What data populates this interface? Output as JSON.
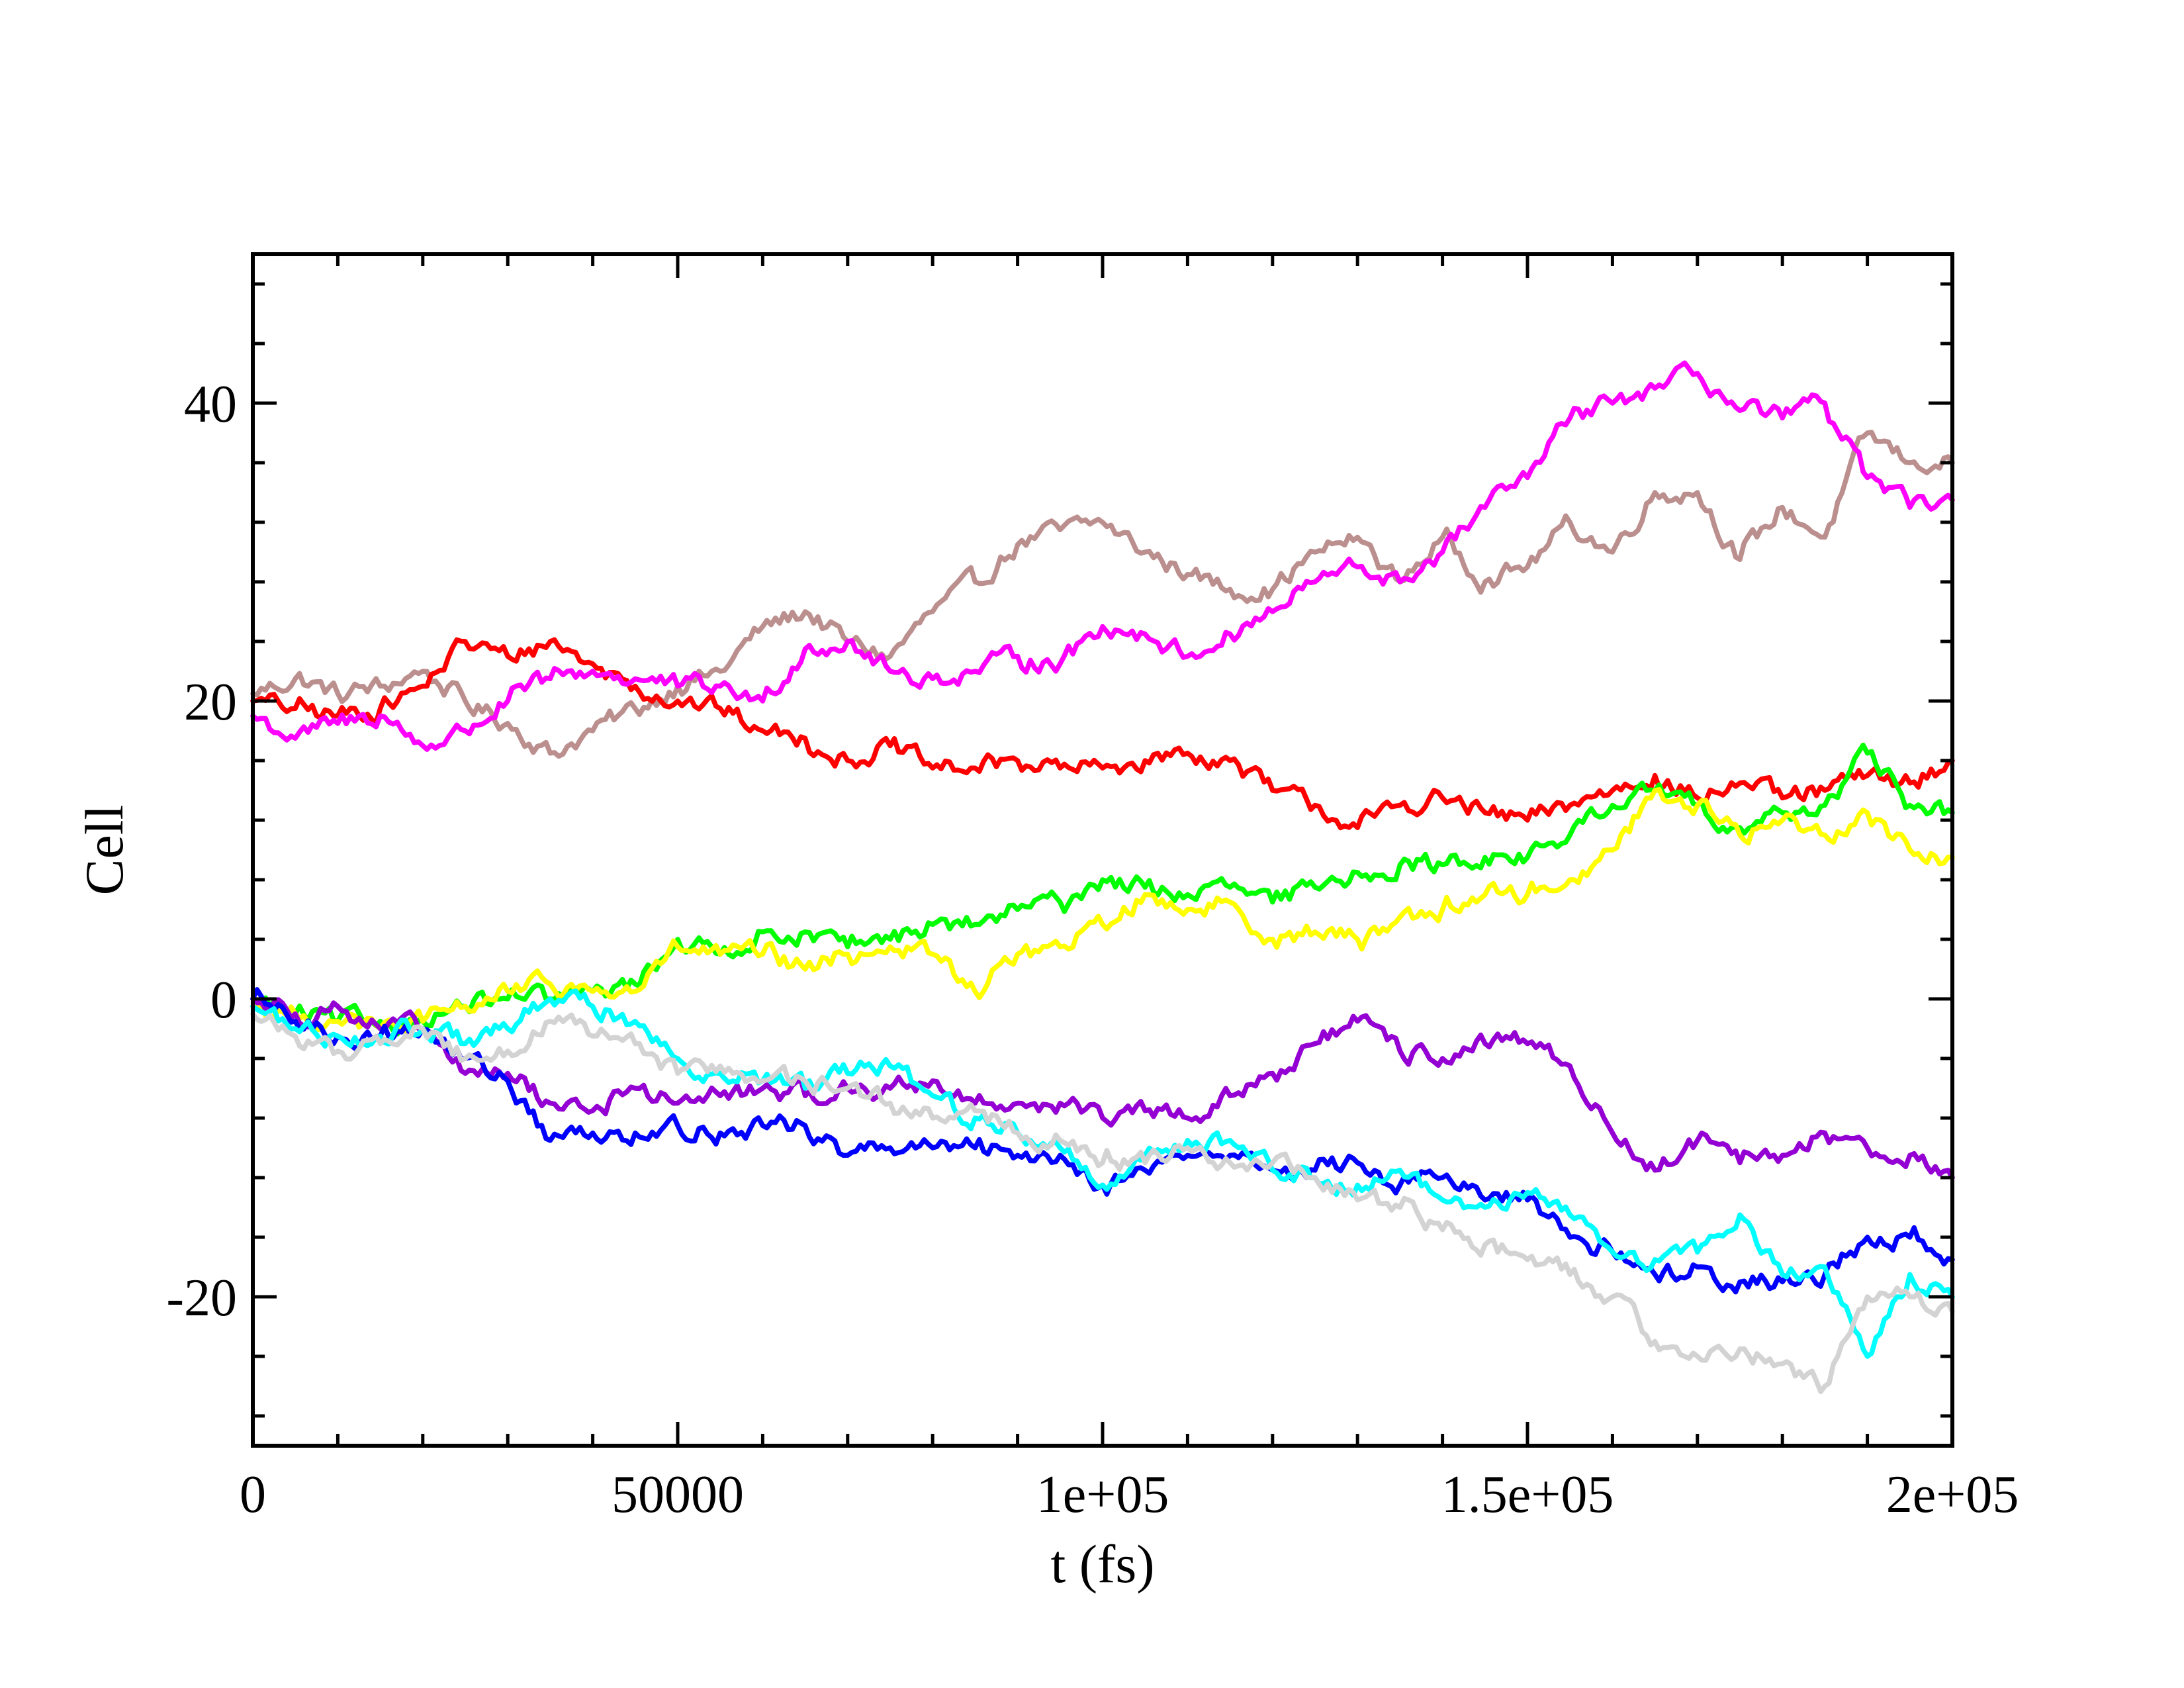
{
  "chart_data": {
    "type": "line",
    "title": "",
    "xlabel": "t (fs)",
    "ylabel": "Cell",
    "xlim": [
      0,
      200000
    ],
    "ylim": [
      -30,
      50
    ],
    "x_ticks": [
      0,
      50000,
      100000,
      150000,
      200000
    ],
    "x_tick_labels": [
      "0",
      "50000",
      "1e+05",
      "1.5e+05",
      "2e+05"
    ],
    "x_minor_step": 10000,
    "y_ticks": [
      -20,
      0,
      20,
      40
    ],
    "y_tick_labels": [
      "-20",
      "0",
      "20",
      "40"
    ],
    "y_minor_step": 4,
    "grid": false,
    "legend": "none",
    "series": [
      {
        "color": "#bc8f8f",
        "x": [
          0,
          5000,
          10000,
          15000,
          20000,
          25000,
          30000,
          35000,
          40000,
          45000,
          50000,
          55000,
          60000,
          65000,
          70000,
          75000,
          80000,
          85000,
          90000,
          95000,
          100000,
          105000,
          110000,
          115000,
          120000,
          125000,
          130000,
          135000,
          140000,
          145000,
          150000,
          155000,
          160000,
          165000,
          170000,
          175000,
          180000,
          185000,
          190000,
          195000,
          200000
        ],
        "y": [
          20.5,
          21.5,
          20.5,
          21,
          22,
          20,
          18.5,
          16.5,
          18,
          19.5,
          21,
          22,
          25,
          26,
          24,
          23,
          26,
          28,
          30.5,
          31.5,
          32,
          30,
          28.5,
          27.5,
          27.5,
          30,
          31,
          28,
          31,
          28,
          29,
          32,
          30,
          34,
          34,
          29.5,
          33,
          31,
          38,
          36,
          36
        ]
      },
      {
        "color": "#ff0000",
        "x": [
          0,
          5000,
          10000,
          15000,
          20000,
          25000,
          30000,
          35000,
          40000,
          45000,
          50000,
          55000,
          60000,
          65000,
          70000,
          75000,
          80000,
          85000,
          90000,
          95000,
          100000,
          105000,
          110000,
          115000,
          120000,
          125000,
          130000,
          135000,
          140000,
          145000,
          150000,
          155000,
          160000,
          165000,
          170000,
          175000,
          180000,
          185000,
          190000,
          195000,
          200000
        ],
        "y": [
          20,
          19.5,
          19,
          19.5,
          21,
          24,
          23,
          24,
          22.5,
          21,
          20,
          19.5,
          18,
          17.5,
          16,
          17,
          15.5,
          15.5,
          16,
          15.5,
          15.5,
          16,
          16.5,
          16,
          14,
          13,
          11.5,
          13,
          13.5,
          12.5,
          12,
          13,
          14,
          15,
          13.5,
          14.5,
          13.5,
          14,
          15,
          14.5,
          16
        ]
      },
      {
        "color": "#ff00ff",
        "x": [
          0,
          5000,
          10000,
          15000,
          20000,
          25000,
          30000,
          35000,
          40000,
          45000,
          50000,
          55000,
          60000,
          65000,
          70000,
          75000,
          80000,
          85000,
          90000,
          95000,
          100000,
          105000,
          110000,
          115000,
          120000,
          125000,
          130000,
          135000,
          140000,
          145000,
          150000,
          155000,
          160000,
          165000,
          170000,
          175000,
          180000,
          185000,
          190000,
          195000,
          200000
        ],
        "y": [
          19,
          17.5,
          18.5,
          19,
          17,
          18,
          20,
          21.5,
          22,
          21.5,
          21,
          21,
          20,
          23.5,
          24,
          22,
          21.5,
          22,
          23,
          22.5,
          25,
          24.5,
          23,
          24.5,
          26,
          28,
          29,
          28,
          30,
          33,
          35,
          39,
          40,
          41,
          42,
          39.5,
          39,
          40,
          35,
          33,
          33.5
        ]
      },
      {
        "color": "#00ff00",
        "x": [
          0,
          5000,
          10000,
          15000,
          20000,
          25000,
          30000,
          35000,
          40000,
          45000,
          50000,
          55000,
          60000,
          65000,
          70000,
          75000,
          80000,
          85000,
          90000,
          95000,
          100000,
          105000,
          110000,
          115000,
          120000,
          125000,
          130000,
          135000,
          140000,
          145000,
          150000,
          155000,
          160000,
          165000,
          170000,
          175000,
          180000,
          185000,
          190000,
          195000,
          200000
        ],
        "y": [
          0,
          -1,
          -1.5,
          -1.5,
          -1.5,
          -0.5,
          0,
          0,
          0.5,
          1,
          4,
          3,
          4.5,
          4.5,
          3.5,
          4,
          5,
          5,
          6,
          6.5,
          8,
          7.5,
          7,
          7.5,
          6.5,
          7.5,
          8.5,
          9,
          9,
          9.5,
          9.5,
          11,
          13,
          14,
          13,
          11.5,
          12.5,
          13,
          16.5,
          13,
          12.5
        ]
      },
      {
        "color": "#ffff00",
        "x": [
          0,
          5000,
          10000,
          15000,
          20000,
          25000,
          30000,
          35000,
          40000,
          45000,
          50000,
          55000,
          60000,
          65000,
          70000,
          75000,
          80000,
          85000,
          90000,
          95000,
          100000,
          105000,
          110000,
          115000,
          120000,
          125000,
          130000,
          135000,
          140000,
          145000,
          150000,
          155000,
          160000,
          165000,
          170000,
          175000,
          180000,
          185000,
          190000,
          195000,
          200000
        ],
        "y": [
          -0.5,
          -1,
          -1.5,
          -2,
          -1.5,
          -0.5,
          0.5,
          1,
          0.5,
          0.5,
          3.5,
          3,
          3,
          2,
          3,
          3.5,
          3,
          0.5,
          3,
          3.5,
          5,
          7,
          6,
          6.5,
          4,
          4.5,
          4,
          5.5,
          6,
          7,
          7,
          8,
          10,
          14,
          13,
          11,
          12,
          11,
          12.5,
          10,
          9.5
        ]
      },
      {
        "color": "#9400d3",
        "x": [
          0,
          5000,
          10000,
          15000,
          20000,
          25000,
          30000,
          35000,
          40000,
          45000,
          50000,
          55000,
          60000,
          65000,
          70000,
          75000,
          80000,
          85000,
          90000,
          95000,
          100000,
          105000,
          110000,
          115000,
          120000,
          125000,
          130000,
          135000,
          140000,
          145000,
          150000,
          155000,
          160000,
          165000,
          170000,
          175000,
          180000,
          185000,
          190000,
          195000,
          200000
        ],
        "y": [
          0,
          -1,
          -0.5,
          -2,
          -2,
          -5,
          -5,
          -7,
          -7.5,
          -6,
          -7,
          -6.5,
          -6,
          -6.5,
          -6,
          -6,
          -5.5,
          -7,
          -7,
          -7,
          -8,
          -7.5,
          -8,
          -6.5,
          -5,
          -3,
          -1.5,
          -3.5,
          -4,
          -3,
          -3,
          -4.5,
          -9,
          -11.5,
          -9.5,
          -11,
          -10.5,
          -9,
          -10,
          -10.5,
          -12
        ]
      },
      {
        "color": "#0000ff",
        "x": [
          0,
          5000,
          10000,
          15000,
          20000,
          25000,
          30000,
          35000,
          40000,
          45000,
          50000,
          55000,
          60000,
          65000,
          70000,
          75000,
          80000,
          85000,
          90000,
          95000,
          100000,
          105000,
          110000,
          115000,
          120000,
          125000,
          130000,
          135000,
          140000,
          145000,
          150000,
          155000,
          160000,
          165000,
          170000,
          175000,
          180000,
          185000,
          190000,
          195000,
          200000
        ],
        "y": [
          0,
          -1.5,
          -2.5,
          -2.5,
          -2,
          -4,
          -5.5,
          -9.5,
          -9,
          -9,
          -8.5,
          -9,
          -8.5,
          -8.5,
          -10.5,
          -10,
          -10,
          -10,
          -10.5,
          -10.5,
          -12.5,
          -11.5,
          -10.5,
          -10.5,
          -11.5,
          -11.5,
          -11,
          -12.5,
          -12,
          -13.5,
          -13.5,
          -16,
          -17,
          -18.5,
          -18,
          -19,
          -19,
          -18.5,
          -16,
          -16,
          -17.5
        ]
      },
      {
        "color": "#00ffff",
        "x": [
          0,
          5000,
          10000,
          15000,
          20000,
          25000,
          30000,
          35000,
          40000,
          45000,
          50000,
          55000,
          60000,
          65000,
          70000,
          75000,
          80000,
          85000,
          90000,
          95000,
          100000,
          105000,
          110000,
          115000,
          120000,
          125000,
          130000,
          135000,
          140000,
          145000,
          150000,
          155000,
          160000,
          165000,
          170000,
          175000,
          180000,
          185000,
          190000,
          195000,
          200000
        ],
        "y": [
          -0.5,
          -2,
          -2.5,
          -2.5,
          -2,
          -3,
          -2,
          0,
          -0.5,
          -1.5,
          -4,
          -5,
          -5.5,
          -6,
          -5,
          -4.5,
          -6.5,
          -8,
          -9,
          -10,
          -12.5,
          -10.5,
          -9.5,
          -9.5,
          -11.5,
          -12,
          -12.5,
          -11.5,
          -13.5,
          -14,
          -13,
          -14.5,
          -17,
          -17.5,
          -17,
          -14.5,
          -18.5,
          -18,
          -24,
          -18.5,
          -20
        ]
      },
      {
        "color": "#d3d3d3",
        "x": [
          0,
          5000,
          10000,
          15000,
          20000,
          25000,
          30000,
          35000,
          40000,
          45000,
          50000,
          55000,
          60000,
          65000,
          70000,
          75000,
          80000,
          85000,
          90000,
          95000,
          100000,
          105000,
          110000,
          115000,
          120000,
          125000,
          130000,
          135000,
          140000,
          145000,
          150000,
          155000,
          160000,
          165000,
          170000,
          175000,
          180000,
          185000,
          190000,
          195000,
          200000
        ],
        "y": [
          -1,
          -2.5,
          -3.5,
          -3,
          -2,
          -4,
          -3.5,
          -1.5,
          -2.5,
          -3,
          -5,
          -4.5,
          -5.5,
          -5.5,
          -6,
          -7,
          -8,
          -7.5,
          -9,
          -9.5,
          -11,
          -11,
          -10,
          -11,
          -11,
          -12,
          -13.5,
          -14,
          -15.5,
          -16.5,
          -17.5,
          -18.5,
          -20,
          -23,
          -24,
          -23.5,
          -24.5,
          -26,
          -20,
          -20,
          -21
        ]
      }
    ]
  }
}
